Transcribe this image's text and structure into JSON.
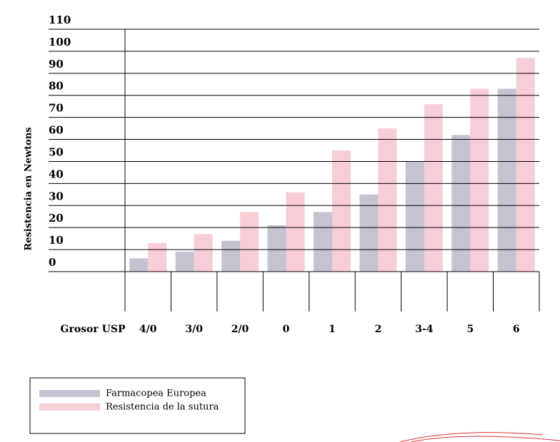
{
  "chart_data": {
    "type": "bar",
    "x_label": "Grosor USP",
    "y_label": "Resistencia  en Newtons",
    "categories": [
      "4/0",
      "3/0",
      "2/0",
      "0",
      "1",
      "2",
      "3-4",
      "5",
      "6"
    ],
    "series": [
      {
        "name": "Farmacopea Europea",
        "color": "#c3c3d2",
        "values": [
          6,
          9,
          14,
          21,
          27,
          35,
          50,
          62,
          83
        ]
      },
      {
        "name": "Resistencia de la sutura",
        "color": "#f7cdd6",
        "values": [
          13,
          17,
          27,
          36,
          55,
          65,
          76,
          83,
          97
        ]
      }
    ],
    "ylim": [
      0,
      110
    ],
    "yticks": [
      0,
      10,
      20,
      30,
      40,
      50,
      60,
      70,
      80,
      90,
      100,
      110
    ],
    "grid": true,
    "legend": "bottom-left"
  }
}
